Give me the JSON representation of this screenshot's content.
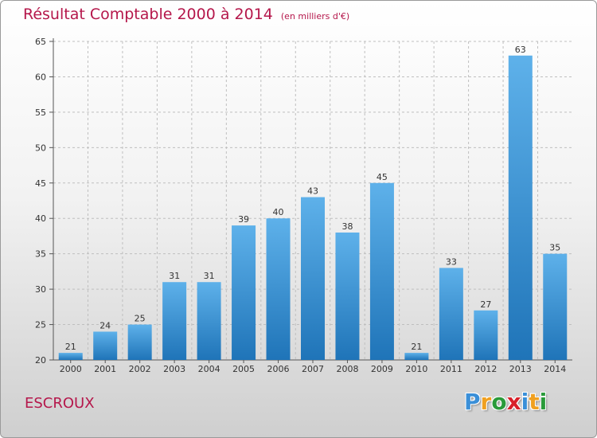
{
  "title": "Résultat Comptable 2000 à 2014",
  "unit": "(en milliers d'€)",
  "commune": "ESCROUX",
  "logo": {
    "letters": [
      {
        "char": "P",
        "color": "#3a8fd8"
      },
      {
        "char": "r",
        "color": "#f0a020"
      },
      {
        "char": "o",
        "color": "#2a9b3a"
      },
      {
        "char": "x",
        "color": "#d8202a"
      },
      {
        "char": "i",
        "color": "#3a8fd8"
      },
      {
        "char": "t",
        "color": "#f0a020"
      },
      {
        "char": "i",
        "color": "#2a9b3a"
      }
    ]
  },
  "colors": {
    "title": "#b5174b",
    "bar_top": "#5eb1ea",
    "bar_bottom": "#1f74b8",
    "grid": "#bfbfbf"
  },
  "chart_data": {
    "type": "bar",
    "title": "Résultat Comptable 2000 à 2014",
    "categories": [
      "2000",
      "2001",
      "2002",
      "2003",
      "2004",
      "2005",
      "2006",
      "2007",
      "2008",
      "2009",
      "2010",
      "2011",
      "2012",
      "2013",
      "2014"
    ],
    "values": [
      21,
      24,
      25,
      31,
      31,
      39,
      40,
      43,
      38,
      45,
      21,
      33,
      27,
      63,
      35
    ],
    "ylim": [
      20,
      65
    ],
    "yticks": [
      20,
      25,
      30,
      35,
      40,
      45,
      50,
      55,
      60,
      65
    ],
    "grid": true,
    "data_labels": true
  }
}
